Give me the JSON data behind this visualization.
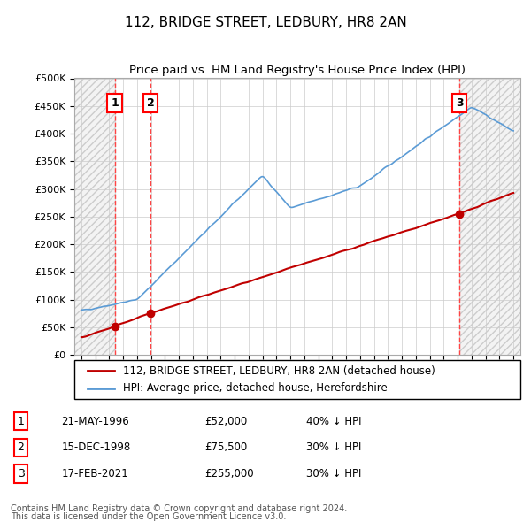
{
  "title": "112, BRIDGE STREET, LEDBURY, HR8 2AN",
  "subtitle": "Price paid vs. HM Land Registry's House Price Index (HPI)",
  "ylabel_ticks": [
    "£0",
    "£50K",
    "£100K",
    "£150K",
    "£200K",
    "£250K",
    "£300K",
    "£350K",
    "£400K",
    "£450K",
    "£500K"
  ],
  "ytick_values": [
    0,
    50000,
    100000,
    150000,
    200000,
    250000,
    300000,
    350000,
    400000,
    450000,
    500000
  ],
  "xlim_start": 1993.5,
  "xlim_end": 2025.5,
  "ylim_min": 0,
  "ylim_max": 500000,
  "hpi_color": "#5b9bd5",
  "price_color": "#c00000",
  "sale_marker_color": "#c00000",
  "vline_color": "#ff4444",
  "shade_color": "#ddeeff",
  "transactions": [
    {
      "num": 1,
      "date_num": 1996.39,
      "price": 52000,
      "label": "1",
      "date_str": "21-MAY-1996",
      "price_str": "£52,000",
      "hpi_str": "40% ↓ HPI"
    },
    {
      "num": 2,
      "date_num": 1998.96,
      "price": 75500,
      "label": "2",
      "date_str": "15-DEC-1998",
      "price_str": "£75,500",
      "hpi_str": "30% ↓ HPI"
    },
    {
      "num": 3,
      "date_num": 2021.12,
      "price": 255000,
      "label": "3",
      "date_str": "17-FEB-2021",
      "price_str": "£255,000",
      "hpi_str": "30% ↓ HPI"
    }
  ],
  "legend_line1": "112, BRIDGE STREET, LEDBURY, HR8 2AN (detached house)",
  "legend_line2": "HPI: Average price, detached house, Herefordshire",
  "footer1": "Contains HM Land Registry data © Crown copyright and database right 2024.",
  "footer2": "This data is licensed under the Open Government Licence v3.0.",
  "table_rows": [
    {
      "num": "1",
      "date": "21-MAY-1996",
      "price": "£52,000",
      "hpi": "40% ↓ HPI"
    },
    {
      "num": "2",
      "date": "15-DEC-1998",
      "price": "£75,500",
      "hpi": "30% ↓ HPI"
    },
    {
      "num": "3",
      "date": "17-FEB-2021",
      "price": "£255,000",
      "hpi": "30% ↓ HPI"
    }
  ]
}
